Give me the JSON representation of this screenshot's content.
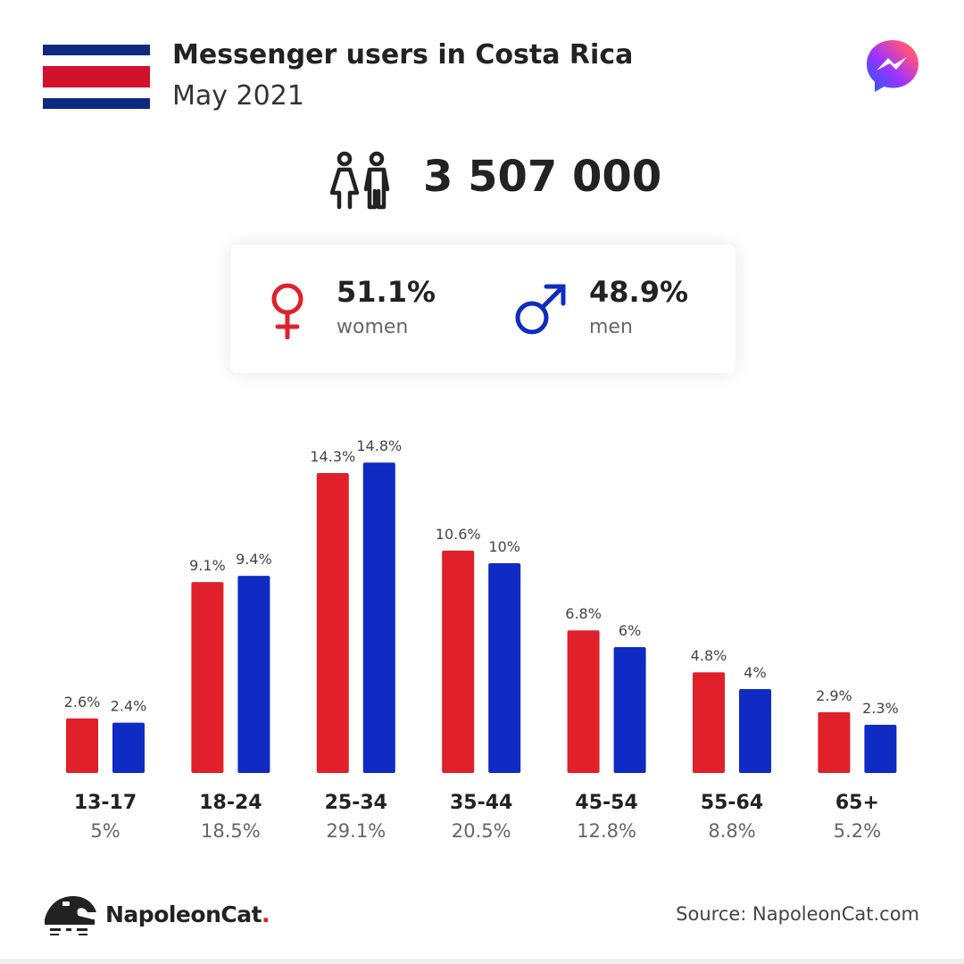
{
  "header": {
    "title": "Messenger users in Costa Rica",
    "subtitle": "May 2021"
  },
  "icons": {
    "flag": "costa-rica-flag-icon",
    "brand": "messenger-logo-icon",
    "people": "people-icon",
    "female": "female-symbol-icon",
    "male": "male-symbol-icon",
    "footer_logo": "napoleoncat-logo-icon"
  },
  "colors": {
    "women": "#e0202a",
    "men": "#0f2bc4",
    "flag_blue": "#0d2a80",
    "flag_red": "#d2112b"
  },
  "summary": {
    "total": "3 507 000",
    "women_pct": "51.1%",
    "women_label": "women",
    "men_pct": "48.9%",
    "men_label": "men"
  },
  "chart_data": {
    "type": "bar",
    "categories": [
      "13-17",
      "18-24",
      "25-34",
      "35-44",
      "45-54",
      "55-64",
      "65+"
    ],
    "category_totals": [
      "5%",
      "18.5%",
      "29.1%",
      "20.5%",
      "12.8%",
      "8.8%",
      "5.2%"
    ],
    "series": [
      {
        "name": "women",
        "values": [
          2.6,
          9.1,
          14.3,
          10.6,
          6.8,
          4.8,
          2.9
        ],
        "labels": [
          "2.6%",
          "9.1%",
          "14.3%",
          "10.6%",
          "6.8%",
          "4.8%",
          "2.9%"
        ]
      },
      {
        "name": "men",
        "values": [
          2.4,
          9.4,
          14.8,
          10,
          6,
          4,
          2.3
        ],
        "labels": [
          "2.4%",
          "9.4%",
          "14.8%",
          "10%",
          "6%",
          "4%",
          "2.3%"
        ]
      }
    ],
    "title": "",
    "xlabel": "",
    "ylabel": "",
    "ylim": [
      0,
      15
    ],
    "grid": false
  },
  "footer": {
    "brand": "NapoleonCat",
    "brand_dot": ".",
    "source": "Source: NapoleonCat.com"
  }
}
